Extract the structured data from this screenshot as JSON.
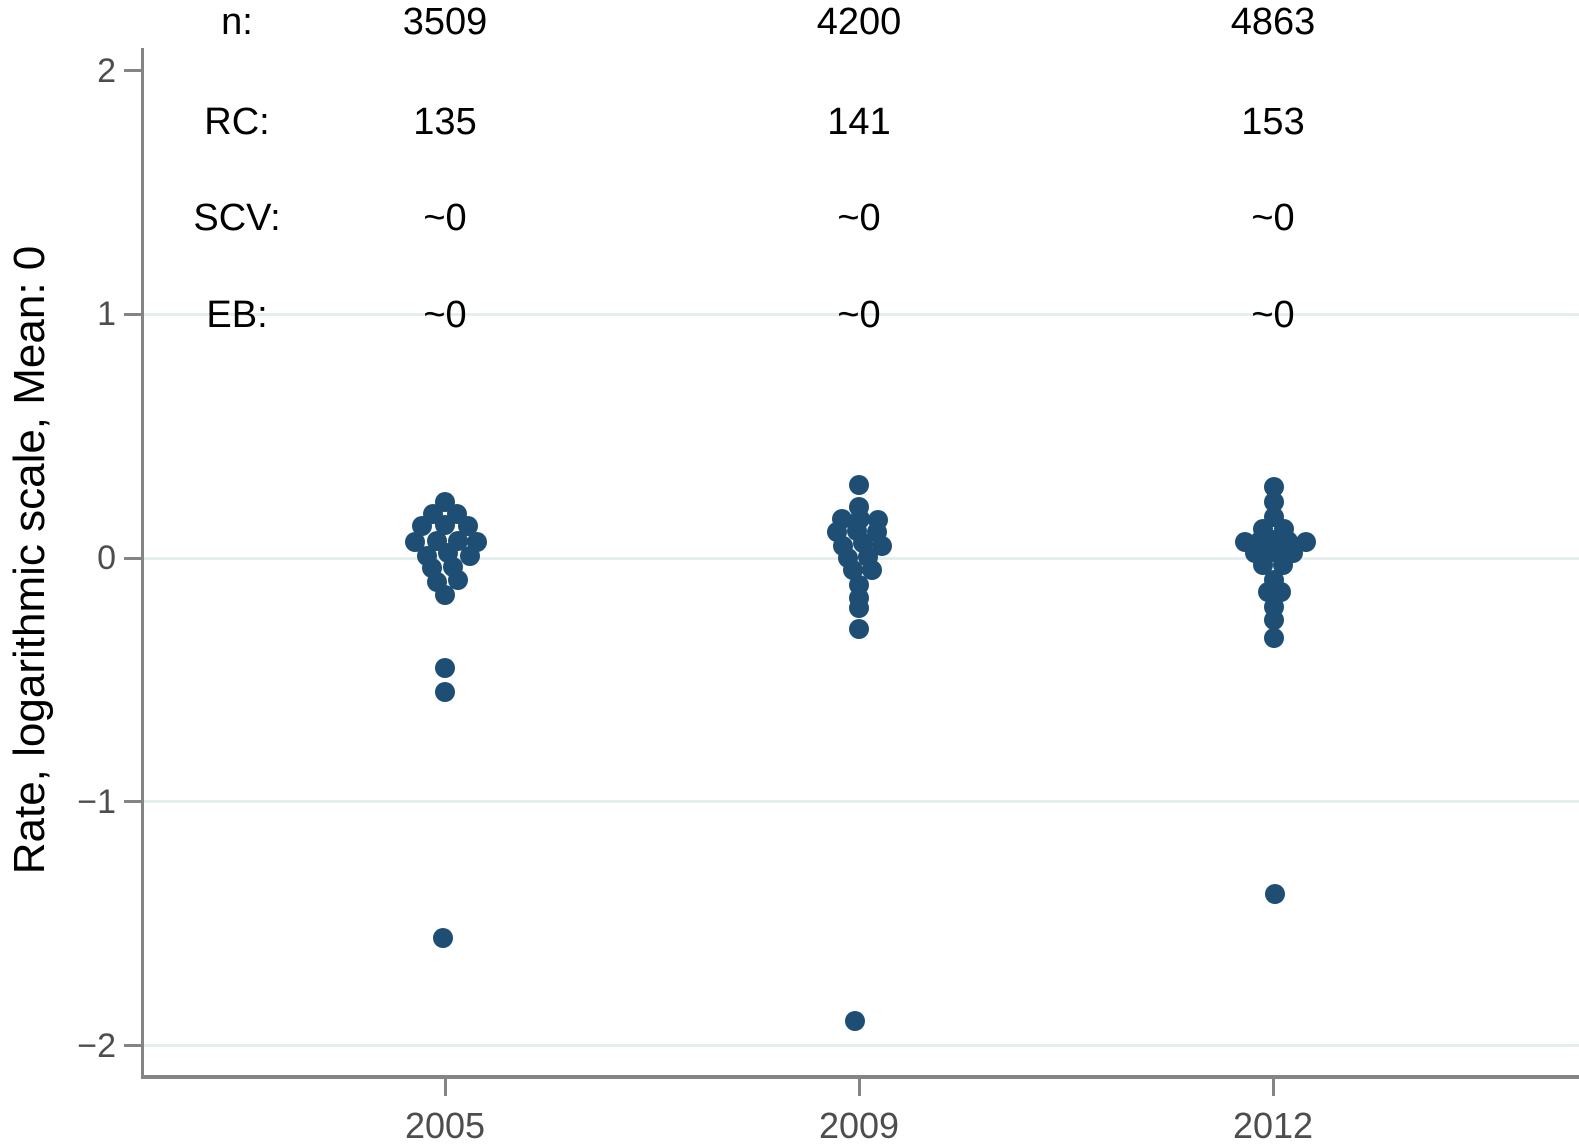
{
  "figure": {
    "background": "#ffffff"
  },
  "chart_data": {
    "type": "scatter",
    "title": "",
    "xlabel": "",
    "ylabel": "Rate, logarithmic scale, Mean: 0",
    "x_categories": [
      "2005",
      "2009",
      "2012"
    ],
    "yticks": [
      2,
      1,
      0,
      -1,
      -2
    ],
    "gridline_values": [
      1,
      0,
      -1,
      -2
    ],
    "ylim": [
      -2.13,
      2.09
    ],
    "grid_on": true,
    "legend": "none",
    "marker": {
      "color": "#1e4e74",
      "radius_px": 10
    },
    "colors": {
      "axis": "#848484",
      "grid": "#e4eeed",
      "tick_label": "#4d4d4d",
      "annotation_text": "#000000"
    },
    "annotation_table": {
      "row_labels": [
        "n:",
        "RC:",
        "SCV:",
        "EB:"
      ],
      "columns": [
        "2005",
        "2009",
        "2012"
      ],
      "values": [
        [
          "3509",
          "4200",
          "4863"
        ],
        [
          "135",
          "141",
          "153"
        ],
        [
          "~0",
          "~0",
          "~0"
        ],
        [
          "~0",
          "~0",
          "~0"
        ]
      ]
    },
    "groups": [
      {
        "year": "2005",
        "points": [
          [
            0,
            0.23
          ],
          [
            -12,
            0.18
          ],
          [
            12,
            0.18
          ],
          [
            -23,
            0.13
          ],
          [
            0,
            0.135
          ],
          [
            23,
            0.13
          ],
          [
            -30,
            0.065
          ],
          [
            -8,
            0.07
          ],
          [
            13,
            0.07
          ],
          [
            32,
            0.065
          ],
          [
            -18,
            0.01
          ],
          [
            3,
            0.02
          ],
          [
            25,
            0.01
          ],
          [
            -13,
            -0.04
          ],
          [
            8,
            -0.035
          ],
          [
            -8,
            -0.1
          ],
          [
            13,
            -0.09
          ],
          [
            0,
            -0.15
          ],
          [
            0,
            -0.45
          ],
          [
            0,
            -0.55
          ],
          [
            -2,
            -1.56
          ]
        ]
      },
      {
        "year": "2009",
        "points": [
          [
            0,
            0.3
          ],
          [
            0,
            0.21
          ],
          [
            -17,
            0.16
          ],
          [
            1,
            0.16
          ],
          [
            19,
            0.155
          ],
          [
            -22,
            0.105
          ],
          [
            -2,
            0.11
          ],
          [
            18,
            0.105
          ],
          [
            -16,
            0.05
          ],
          [
            4,
            0.06
          ],
          [
            23,
            0.05
          ],
          [
            -11,
            0.0
          ],
          [
            9,
            0.005
          ],
          [
            -6,
            -0.05
          ],
          [
            13,
            -0.05
          ],
          [
            0,
            -0.11
          ],
          [
            0,
            -0.165
          ],
          [
            0,
            -0.205
          ],
          [
            0,
            -0.29
          ],
          [
            -4,
            -1.9
          ]
        ]
      },
      {
        "year": "2012",
        "points": [
          [
            1,
            0.29
          ],
          [
            1,
            0.23
          ],
          [
            1,
            0.17
          ],
          [
            -10,
            0.12
          ],
          [
            11,
            0.12
          ],
          [
            -28,
            0.065
          ],
          [
            -13,
            0.07
          ],
          [
            1,
            0.075
          ],
          [
            15,
            0.07
          ],
          [
            33,
            0.065
          ],
          [
            -18,
            0.02
          ],
          [
            1,
            0.025
          ],
          [
            20,
            0.02
          ],
          [
            -10,
            -0.03
          ],
          [
            10,
            -0.03
          ],
          [
            1,
            -0.09
          ],
          [
            -5,
            -0.14
          ],
          [
            8,
            -0.14
          ],
          [
            1,
            -0.2
          ],
          [
            1,
            -0.255
          ],
          [
            1,
            -0.33
          ],
          [
            2,
            -1.38
          ]
        ]
      }
    ]
  }
}
